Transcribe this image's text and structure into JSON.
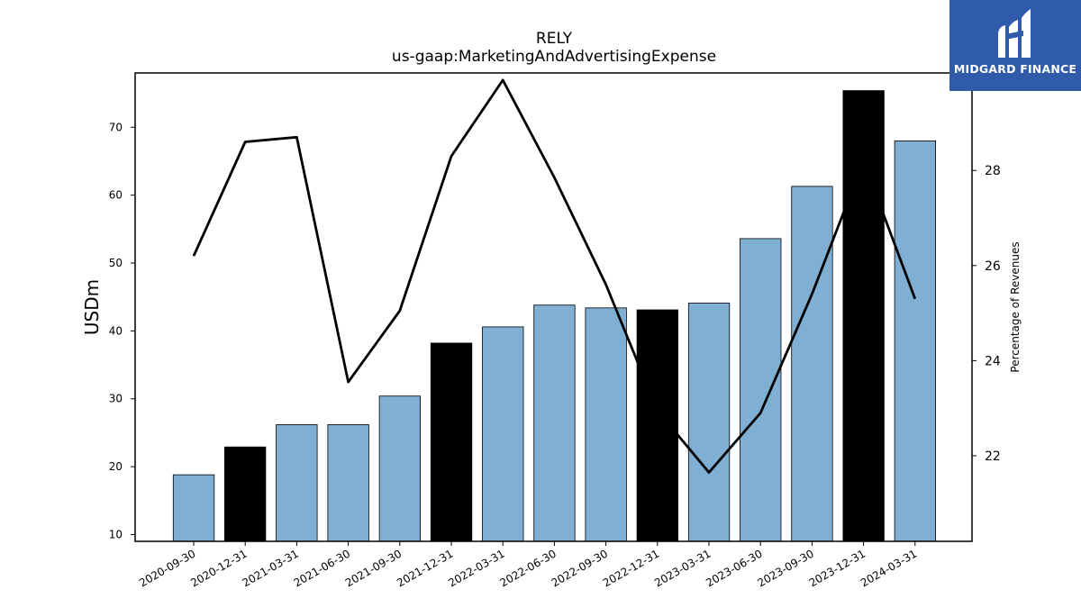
{
  "brand": {
    "name": "MIDGARD FINANCE",
    "logo_icon": "midgard-finance-logo-icon",
    "bg_color": "#2f5baa"
  },
  "chart_data": {
    "type": "bar",
    "title": "RELY",
    "subtitle": "us-gaap:MarketingAndAdvertisingExpense",
    "ylabel": "USDm",
    "ylabel_right": "Percentage of Revenues",
    "categories": [
      "2020-09-30",
      "2020-12-31",
      "2021-03-31",
      "2021-06-30",
      "2021-09-30",
      "2021-12-31",
      "2022-03-31",
      "2022-06-30",
      "2022-09-30",
      "2022-12-31",
      "2023-03-31",
      "2023-06-30",
      "2023-09-30",
      "2023-12-31",
      "2024-03-31"
    ],
    "ylim": [
      9,
      78
    ],
    "yticks": [
      10,
      20,
      30,
      40,
      50,
      60,
      70
    ],
    "ylim_right": [
      20.2,
      30.05
    ],
    "yticks_right": [
      22,
      24,
      26,
      28
    ],
    "grid": false,
    "colors": {
      "bar_default": "#7fb0d4",
      "bar_highlight": "#000000",
      "line": "#000000"
    },
    "series": [
      {
        "type": "bar",
        "values": [
          18.8,
          22.9,
          26.2,
          26.2,
          30.4,
          38.2,
          40.6,
          43.8,
          43.4,
          43.1,
          44.1,
          53.6,
          61.3,
          75.4,
          68.0
        ],
        "highlight": [
          false,
          true,
          false,
          false,
          false,
          true,
          false,
          false,
          false,
          true,
          false,
          false,
          false,
          true,
          false
        ]
      },
      {
        "type": "line",
        "axis": "right",
        "values": [
          26.2,
          28.6,
          28.7,
          23.55,
          25.05,
          28.3,
          29.9,
          27.85,
          25.6,
          22.95,
          21.65,
          22.9,
          25.4,
          28.2,
          25.3
        ]
      }
    ]
  }
}
